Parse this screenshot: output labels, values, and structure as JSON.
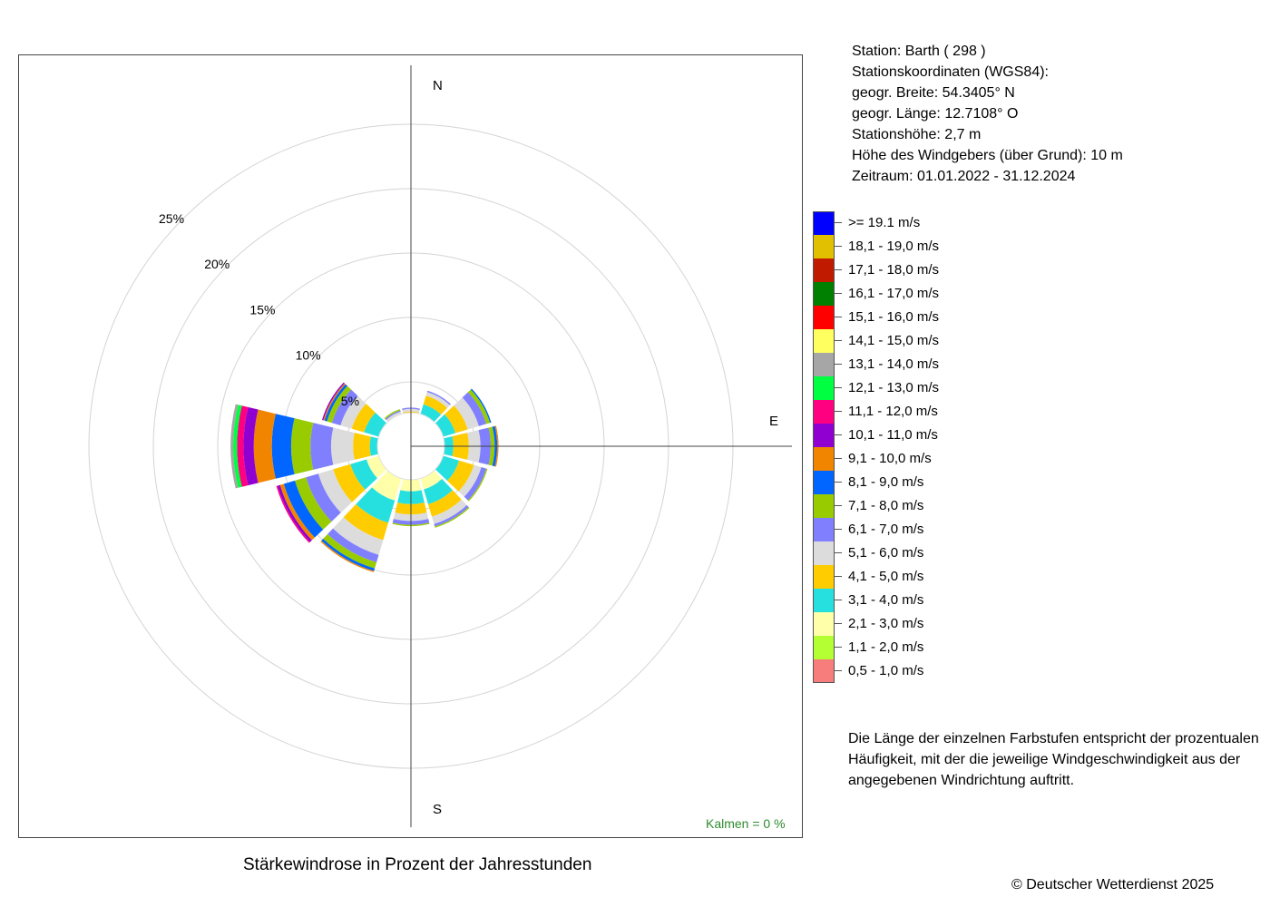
{
  "title": "Stärkewindrose in Prozent der Jahresstunden",
  "copyright": "© Deutscher Wetterdienst  2025",
  "station_info": [
    "Station:  Barth  ( 298 )",
    "Stationskoordinaten (WGS84):",
    "geogr. Breite: 54.3405° N",
    "geogr. Länge: 12.7108° O",
    "Stationshöhe: 2,7 m",
    "Höhe des Windgebers (über Grund): 10 m",
    "Zeitraum: 01.01.2022 - 31.12.2024"
  ],
  "note": [
    "Die Länge der einzelnen Farbstufen entspricht der prozentualen",
    "Häufigkeit, mit der die jeweilige Windgeschwindigkeit aus der",
    "angegebenen Windrichtung auftritt."
  ],
  "calm_label": "Kalmen  =  0 %",
  "compass": {
    "N": "N",
    "E": "E",
    "S": "S"
  },
  "legend": [
    {
      "label": ">= 19.1 m/s",
      "color": "#0000ff"
    },
    {
      "label": "18,1 - 19,0 m/s",
      "color": "#e0c000"
    },
    {
      "label": "17,1 - 18,0 m/s",
      "color": "#c01a00"
    },
    {
      "label": "16,1 - 17,0 m/s",
      "color": "#008000"
    },
    {
      "label": "15,1 - 16,0 m/s",
      "color": "#ff0000"
    },
    {
      "label": "14,1 - 15,0 m/s",
      "color": "#ffff60"
    },
    {
      "label": "13,1 - 14,0 m/s",
      "color": "#a6a6a6"
    },
    {
      "label": "12,1 - 13,0 m/s",
      "color": "#00ff40"
    },
    {
      "label": "11,1 - 12,0 m/s",
      "color": "#ff0080"
    },
    {
      "label": "10,1 - 11,0 m/s",
      "color": "#9000d0"
    },
    {
      "label": "9,1 - 10,0 m/s",
      "color": "#f28500"
    },
    {
      "label": "8,1 - 9,0 m/s",
      "color": "#0066ff"
    },
    {
      "label": "7,1 - 8,0 m/s",
      "color": "#99cc00"
    },
    {
      "label": "6,1 - 7,0 m/s",
      "color": "#8080ff"
    },
    {
      "label": "5,1 - 6,0 m/s",
      "color": "#dcdcdc"
    },
    {
      "label": "4,1 - 5,0 m/s",
      "color": "#ffcc00"
    },
    {
      "label": "3,1 - 4,0 m/s",
      "color": "#26e0e0"
    },
    {
      "label": "2,1 - 3,0 m/s",
      "color": "#ffffaa"
    },
    {
      "label": "1,1 - 2,0 m/s",
      "color": "#b3ff33"
    },
    {
      "label": "0,5 - 1,0 m/s",
      "color": "#f77c7c"
    }
  ],
  "chart_data": {
    "type": "wind-rose",
    "title": "Stärkewindrose in Prozent der Jahresstunden",
    "radial_ticks": [
      5,
      10,
      15,
      20,
      25
    ],
    "radial_tick_labels": [
      "5%",
      "10%",
      "15%",
      "20%",
      "25%"
    ],
    "radial_unit": "%",
    "calm_percent": 0,
    "grid": true,
    "direction_step_deg": 30,
    "speed_classes_ascending": [
      "0,5 - 1,0 m/s",
      "1,1 - 2,0 m/s",
      "2,1 - 3,0 m/s",
      "3,1 - 4,0 m/s",
      "4,1 - 5,0 m/s",
      "5,1 - 6,0 m/s",
      "6,1 - 7,0 m/s",
      "7,1 - 8,0 m/s",
      "8,1 - 9,0 m/s",
      "9,1 - 10,0 m/s",
      "10,1 - 11,0 m/s",
      "11,1 - 12,0 m/s",
      "12,1 - 13,0 m/s",
      "13,1 - 14,0 m/s",
      "14,1 - 15,0 m/s",
      "15,1 - 16,0 m/s",
      "16,1 - 17,0 m/s",
      "17,1 - 18,0 m/s",
      "18,1 - 19,0 m/s",
      ">= 19.1 m/s"
    ],
    "colors_ascending": [
      "#f77c7c",
      "#b3ff33",
      "#ffffaa",
      "#26e0e0",
      "#ffcc00",
      "#dcdcdc",
      "#8080ff",
      "#99cc00",
      "#0066ff",
      "#f28500",
      "#9000d0",
      "#ff0080",
      "#00ff40",
      "#a6a6a6",
      "#ffff60",
      "#ff0000",
      "#008000",
      "#c01a00",
      "#e0c000",
      "#0000ff"
    ],
    "core_percent": 0.9,
    "series": [
      {
        "direction_deg": 0,
        "cumulative_percent": [
          0.9,
          1.6,
          2.0,
          2.4,
          2.7,
          2.9,
          3.0
        ]
      },
      {
        "direction_deg": 30,
        "cumulative_percent": [
          1.0,
          1.9,
          2.6,
          3.4,
          4.1,
          4.4,
          4.5
        ]
      },
      {
        "direction_deg": 60,
        "cumulative_percent": [
          0.9,
          1.6,
          2.6,
          3.6,
          4.6,
          5.5,
          6.1,
          6.4,
          6.5
        ]
      },
      {
        "direction_deg": 90,
        "cumulative_percent": [
          0.9,
          1.4,
          2.3,
          3.3,
          4.5,
          5.4,
          6.2,
          6.5,
          6.7,
          6.8
        ]
      },
      {
        "direction_deg": 120,
        "cumulative_percent": [
          0.9,
          1.6,
          2.6,
          3.9,
          5.1,
          5.7,
          6.1,
          6.2
        ]
      },
      {
        "direction_deg": 150,
        "cumulative_percent": [
          0.9,
          2.0,
          3.5,
          4.7,
          5.7,
          6.3,
          6.5,
          6.6
        ]
      },
      {
        "direction_deg": 180,
        "cumulative_percent": [
          1.2,
          2.2,
          3.5,
          4.5,
          5.3,
          5.8,
          6.1,
          6.2
        ]
      },
      {
        "direction_deg": 210,
        "cumulative_percent": [
          1.1,
          2.6,
          4.4,
          6.2,
          7.6,
          8.8,
          9.4,
          9.9,
          10.1,
          10.2
        ]
      },
      {
        "direction_deg": 240,
        "cumulative_percent": [
          1.0,
          2.2,
          3.6,
          4.9,
          6.3,
          7.5,
          8.5,
          9.4,
          10.3,
          10.6,
          10.8,
          10.9
        ]
      },
      {
        "direction_deg": 270,
        "cumulative_percent": [
          0.9,
          1.4,
          2.2,
          3.2,
          4.5,
          6.2,
          7.8,
          9.3,
          10.8,
          12.2,
          13.0,
          13.5,
          13.8,
          14.0
        ]
      },
      {
        "direction_deg": 300,
        "cumulative_percent": [
          0.9,
          1.6,
          2.6,
          3.8,
          4.8,
          5.7,
          6.4,
          6.8,
          7.0,
          7.1,
          7.2
        ]
      },
      {
        "direction_deg": 330,
        "cumulative_percent": [
          0.9,
          1.4,
          1.9,
          2.3,
          2.6,
          2.8,
          2.9,
          3.0
        ]
      }
    ]
  }
}
